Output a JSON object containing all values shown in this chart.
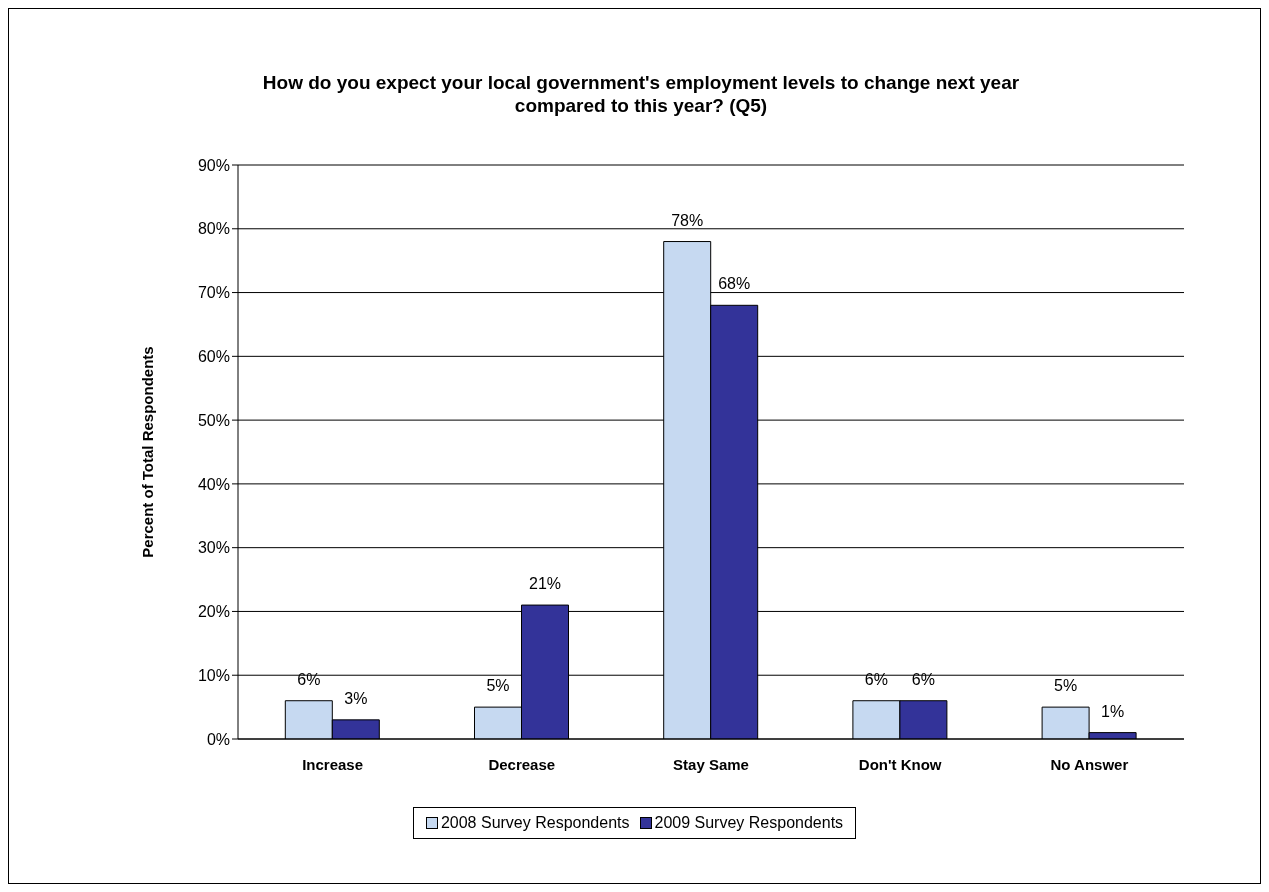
{
  "chart_data": {
    "type": "bar",
    "title": "How do you expect your local government's employment levels to change next year compared to this year? (Q5)",
    "ylabel": "Percent of Total Respondents",
    "categories": [
      "Increase",
      "Decrease",
      "Stay Same",
      "Don't Know",
      "No Answer"
    ],
    "series": [
      {
        "name": "2008 Survey Respondents",
        "color": "#c6d9f1",
        "values": [
          6,
          5,
          78,
          6,
          5
        ],
        "value_labels": [
          "6%",
          "5%",
          "78%",
          "6%",
          "5%"
        ]
      },
      {
        "name": "2009 Survey Respondents",
        "color": "#333399",
        "values": [
          3,
          21,
          68,
          6,
          1
        ],
        "value_labels": [
          "3%",
          "21%",
          "68%",
          "6%",
          "1%"
        ]
      }
    ],
    "ylim": [
      0,
      90
    ],
    "yticks": [
      {
        "value": 0,
        "label": "0%"
      },
      {
        "value": 10,
        "label": "10%"
      },
      {
        "value": 20,
        "label": "20%"
      },
      {
        "value": 30,
        "label": "30%"
      },
      {
        "value": 40,
        "label": "40%"
      },
      {
        "value": 50,
        "label": "50%"
      },
      {
        "value": 60,
        "label": "60%"
      },
      {
        "value": 70,
        "label": "70%"
      },
      {
        "value": 80,
        "label": "80%"
      },
      {
        "value": 90,
        "label": "90%"
      }
    ],
    "grid": "y",
    "legend": "bottom"
  }
}
